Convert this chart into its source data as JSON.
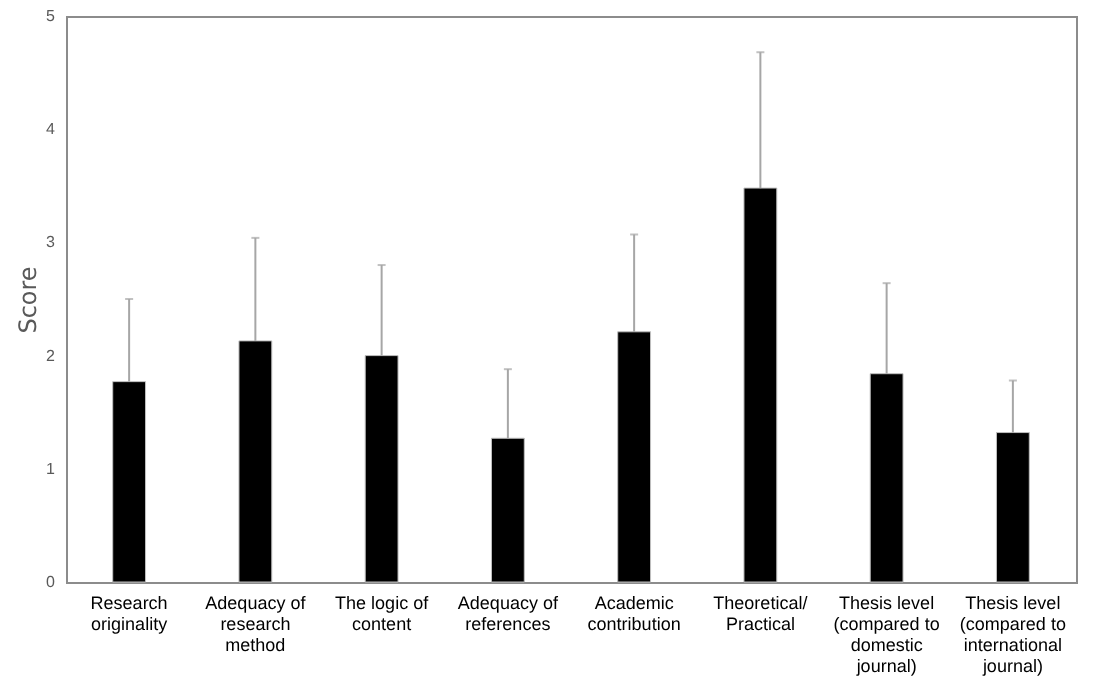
{
  "chart_data": {
    "type": "bar",
    "ylabel": "Score",
    "categories": [
      "Research originality",
      "Adequacy of research method",
      "The logic of content",
      "Adequacy of references",
      "Academic contribution",
      "Theoretical/Practical",
      "Thesis level (compared to domestic journal)",
      "Thesis level (compared to international journal)"
    ],
    "values": [
      1.77,
      2.13,
      2.0,
      1.27,
      2.21,
      3.48,
      1.84,
      1.32
    ],
    "errors": [
      [
        1.77,
        2.5
      ],
      [
        2.13,
        3.04
      ],
      [
        2.0,
        2.8
      ],
      [
        1.27,
        1.88
      ],
      [
        2.21,
        3.07
      ],
      [
        3.48,
        4.68
      ],
      [
        1.84,
        2.64
      ],
      [
        1.32,
        1.78
      ]
    ],
    "color": "#000000",
    "ylim": [
      0,
      5
    ],
    "yticks": [
      0,
      1,
      2,
      3,
      4,
      5
    ],
    "grid": false
  }
}
